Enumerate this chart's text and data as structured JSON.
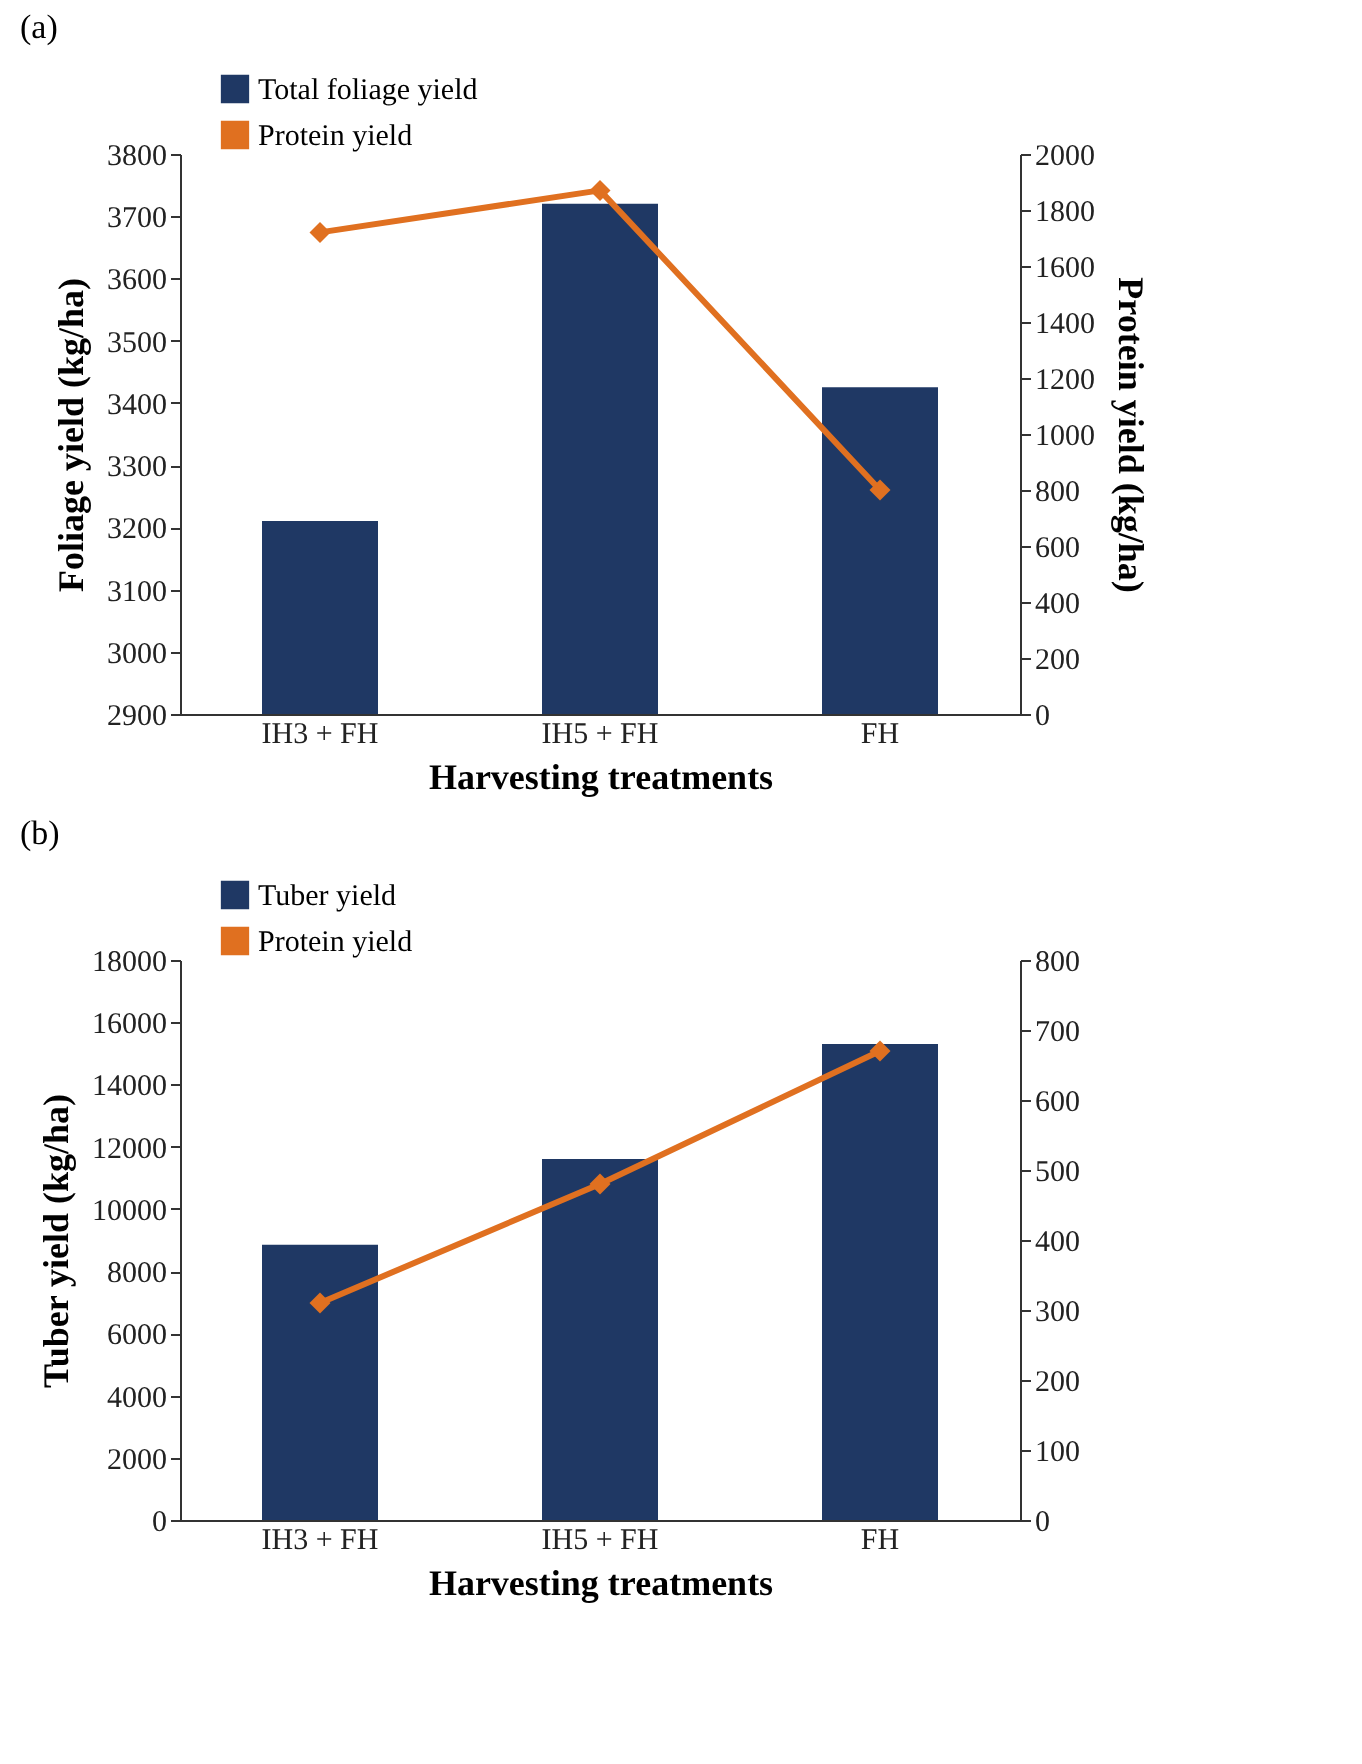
{
  "chart_data": [
    {
      "type": "bar",
      "title": "(a)",
      "xlabel": "Harvesting treatments",
      "ylabel": "Foliage yield (kg/ha)",
      "y2label": "Protein yield (kg/ha)",
      "categories": [
        "IH3 + FH",
        "IH5 + FH",
        "FH"
      ],
      "series": [
        {
          "name": "Total foliage yield",
          "type": "bar",
          "color": "#1f3864",
          "values": [
            3210,
            3720,
            3425
          ]
        },
        {
          "name": "Protein yield",
          "type": "line",
          "axis": "y2",
          "color": "#e07020",
          "values": [
            1720,
            1870,
            800
          ]
        }
      ],
      "ylim": [
        2900,
        3800
      ],
      "yticks": [
        2900,
        3000,
        3100,
        3200,
        3300,
        3400,
        3500,
        3600,
        3700,
        3800
      ],
      "y2lim": [
        0,
        2000
      ],
      "y2ticks": [
        0,
        200,
        400,
        600,
        800,
        1000,
        1200,
        1400,
        1600,
        1800,
        2000
      ],
      "marker": "diamond",
      "legend": "top left"
    },
    {
      "type": "bar",
      "title": "(b)",
      "xlabel": "Harvesting treatments",
      "ylabel": "Tuber yield (kg/ha)",
      "categories": [
        "IH3 + FH",
        "IH5 + FH",
        "FH"
      ],
      "series": [
        {
          "name": "Tuber yield",
          "type": "bar",
          "color": "#1f3864",
          "values": [
            8850,
            11600,
            15300
          ]
        },
        {
          "name": "Protein yield",
          "type": "line",
          "axis": "y2",
          "color": "#e07020",
          "values": [
            310,
            480,
            670
          ]
        }
      ],
      "ylim": [
        0,
        18000
      ],
      "yticks": [
        0,
        2000,
        4000,
        6000,
        8000,
        10000,
        12000,
        14000,
        16000,
        18000
      ],
      "y2lim": [
        0,
        800
      ],
      "y2ticks": [
        0,
        100,
        200,
        300,
        400,
        500,
        600,
        700,
        800
      ],
      "marker": "diamond",
      "legend": "top left"
    }
  ]
}
